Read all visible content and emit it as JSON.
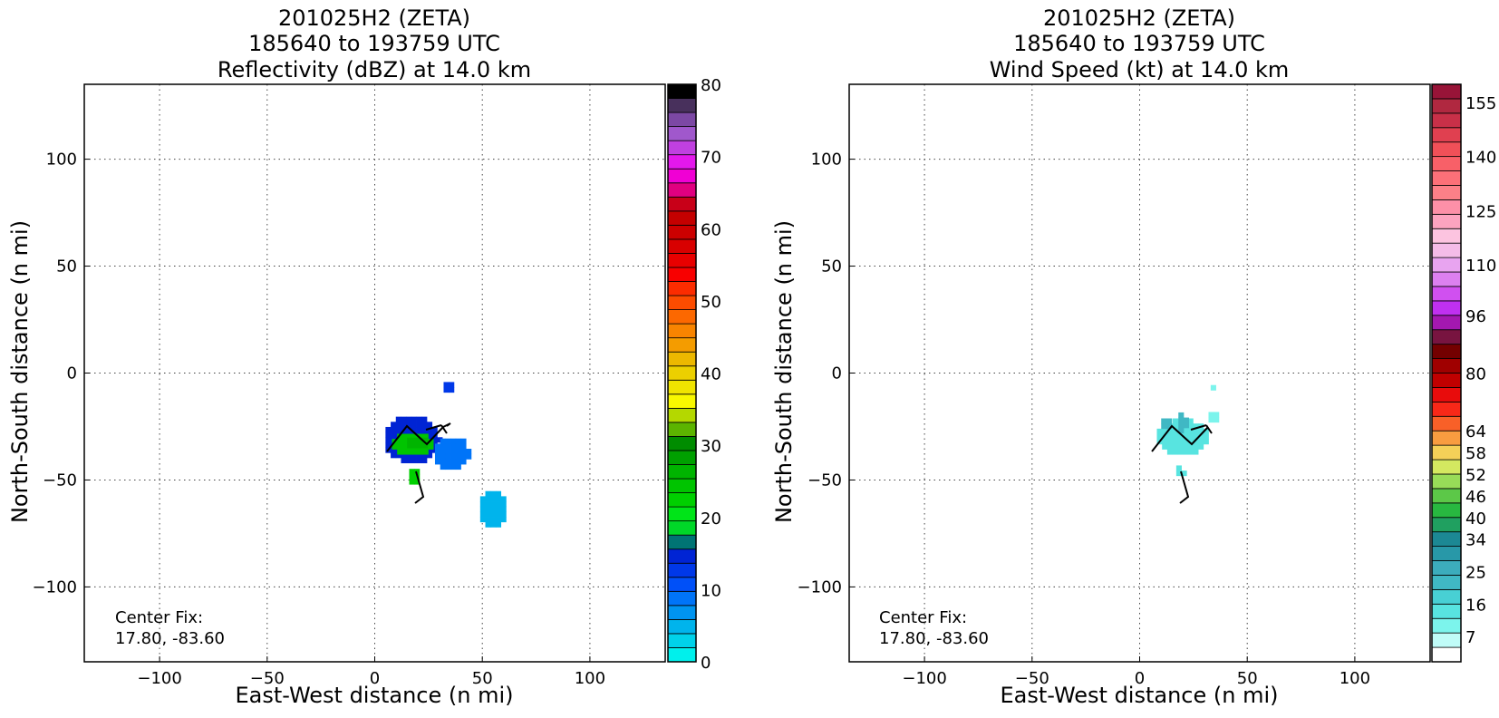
{
  "chart_data": [
    {
      "type": "heatmap",
      "title": [
        "201025H2 (ZETA)",
        "185640 to 193759 UTC",
        "Reflectivity (dBZ) at 14.0 km"
      ],
      "xlabel": "East-West distance (n mi)",
      "ylabel": "North-South distance (n mi)",
      "xlim": [
        -135,
        135
      ],
      "ylim": [
        -135,
        135
      ],
      "xticks": [
        -100,
        -50,
        0,
        50,
        100
      ],
      "yticks": [
        -100,
        -50,
        0,
        50,
        100
      ],
      "tick_labels_x": [
        "−100",
        "−50",
        "0",
        "50",
        "100"
      ],
      "tick_labels_y": [
        "−100",
        "−50",
        "0",
        "50",
        "100"
      ],
      "grid": true,
      "annotation": [
        "Center Fix:",
        "17.80, -83.60"
      ],
      "colorbar": {
        "min": 0,
        "max": 80,
        "ticks": [
          0,
          10,
          20,
          30,
          40,
          50,
          60,
          70,
          80
        ],
        "tick_labels": [
          "0",
          "10",
          "20",
          "30",
          "40",
          "50",
          "60",
          "70",
          "80"
        ],
        "colors": [
          "#00f0ec",
          "#00d2ea",
          "#00b4ec",
          "#0094f0",
          "#0074f8",
          "#0050f8",
          "#0038e8",
          "#0024d4",
          "#007474",
          "#00d828",
          "#00e418",
          "#00d000",
          "#00c400",
          "#00b400",
          "#00a000",
          "#008c00",
          "#5cb400",
          "#b4d800",
          "#f8f800",
          "#f0e400",
          "#ecd000",
          "#ecb800",
          "#f49c00",
          "#f88400",
          "#fc6800",
          "#fc4c00",
          "#fc2c00",
          "#f80000",
          "#e80000",
          "#d80000",
          "#cc0000",
          "#c40000",
          "#c80018",
          "#e00080",
          "#f000d4",
          "#e418ec",
          "#c040e0",
          "#a058cc",
          "#7c48a4",
          "#48305c",
          "#000000"
        ]
      },
      "echo_regions": [
        {
          "x": [
            5,
            30
          ],
          "y": [
            -42,
            -20
          ],
          "value": 14
        },
        {
          "x": [
            8,
            28
          ],
          "y": [
            -38,
            -28
          ],
          "value": 24
        },
        {
          "x": [
            15,
            25
          ],
          "y": [
            -35,
            -30
          ],
          "value": 27
        },
        {
          "x": [
            28,
            44
          ],
          "y": [
            -45,
            -30
          ],
          "value": 8
        },
        {
          "x": [
            16,
            21
          ],
          "y": [
            -52,
            -45
          ],
          "value": 22
        },
        {
          "x": [
            32,
            37
          ],
          "y": [
            -9,
            -3
          ],
          "value": 12
        },
        {
          "x": [
            49,
            61
          ],
          "y": [
            -72,
            -55
          ],
          "value": 4
        }
      ]
    },
    {
      "type": "heatmap",
      "title": [
        "201025H2 (ZETA)",
        "185640 to 193759 UTC",
        "Wind Speed (kt) at 14.0 km"
      ],
      "xlabel": "East-West distance (n mi)",
      "ylabel": "North-South distance (n mi)",
      "xlim": [
        -135,
        135
      ],
      "ylim": [
        -135,
        135
      ],
      "xticks": [
        -100,
        -50,
        0,
        50,
        100
      ],
      "yticks": [
        -100,
        -50,
        0,
        50,
        100
      ],
      "tick_labels_x": [
        "−100",
        "−50",
        "0",
        "50",
        "100"
      ],
      "tick_labels_y": [
        "−100",
        "−50",
        "0",
        "50",
        "100"
      ],
      "grid": true,
      "annotation": [
        "Center Fix:",
        "17.80, -83.60"
      ],
      "colorbar": {
        "min": 0,
        "max": 160,
        "ticks": [
          7,
          16,
          25,
          34,
          40,
          46,
          52,
          58,
          64,
          80,
          96,
          110,
          125,
          140,
          155
        ],
        "tick_labels": [
          "7",
          "16",
          "25",
          "34",
          "40",
          "46",
          "52",
          "58",
          "64",
          "80",
          "96",
          "110",
          "125",
          "140",
          "155"
        ],
        "colors": [
          "#ffffff",
          "#c0fcf8",
          "#7cf4ec",
          "#58e4e0",
          "#48d0d4",
          "#40b8c4",
          "#3cacbc",
          "#2898a8",
          "#1c8894",
          "#20a060",
          "#28b840",
          "#5cc848",
          "#98dc58",
          "#d4e860",
          "#f4d058",
          "#f89c40",
          "#f86028",
          "#f82818",
          "#e80c0c",
          "#c00000",
          "#a00000",
          "#740000",
          "#781440",
          "#a418b0",
          "#c030f0",
          "#d050f0",
          "#dc80f0",
          "#e8a4f0",
          "#f4bce8",
          "#fcc4e0",
          "#fca4c0",
          "#fc90a8",
          "#fc8088",
          "#fc7078",
          "#f86068",
          "#f05058",
          "#e04050",
          "#c83048",
          "#b02840",
          "#981438"
        ]
      },
      "echo_regions": [
        {
          "x": [
            8,
            32
          ],
          "y": [
            -38,
            -22
          ],
          "value": 12
        },
        {
          "x": [
            18,
            22
          ],
          "y": [
            -28,
            -18
          ],
          "value": 22
        },
        {
          "x": [
            10,
            14
          ],
          "y": [
            -26,
            -21
          ],
          "value": 20
        },
        {
          "x": [
            32,
            37
          ],
          "y": [
            -23,
            -17
          ],
          "value": 10
        },
        {
          "x": [
            17,
            21
          ],
          "y": [
            -48,
            -44
          ],
          "value": 12
        },
        {
          "x": [
            33,
            35
          ],
          "y": [
            -8,
            -5
          ],
          "value": 10
        }
      ]
    }
  ]
}
